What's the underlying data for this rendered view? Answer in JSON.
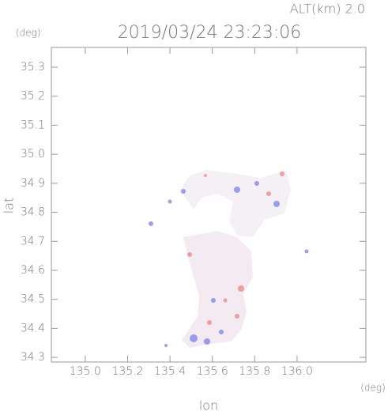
{
  "chart_data": {
    "type": "map",
    "altitude_label": "ALT(km) 2.0",
    "title": "2019/03/24 23:23:06",
    "y_unit": "(deg)",
    "x_unit": "(deg)",
    "xlabel": "lon",
    "ylabel": "lat",
    "xlim": [
      134.84,
      136.325
    ],
    "ylim": [
      34.284,
      35.368
    ],
    "xticks": [
      {
        "value": 135,
        "label": "135.0"
      },
      135.2,
      135.4,
      135.6,
      135.8,
      {
        "value": 136,
        "label": "136.0"
      }
    ],
    "yticks": [
      34.3,
      34.4,
      34.5,
      34.6,
      34.7,
      34.8,
      34.9,
      {
        "value": 35,
        "label": "35.0"
      },
      35.1,
      35.2,
      35.3
    ]
  }
}
